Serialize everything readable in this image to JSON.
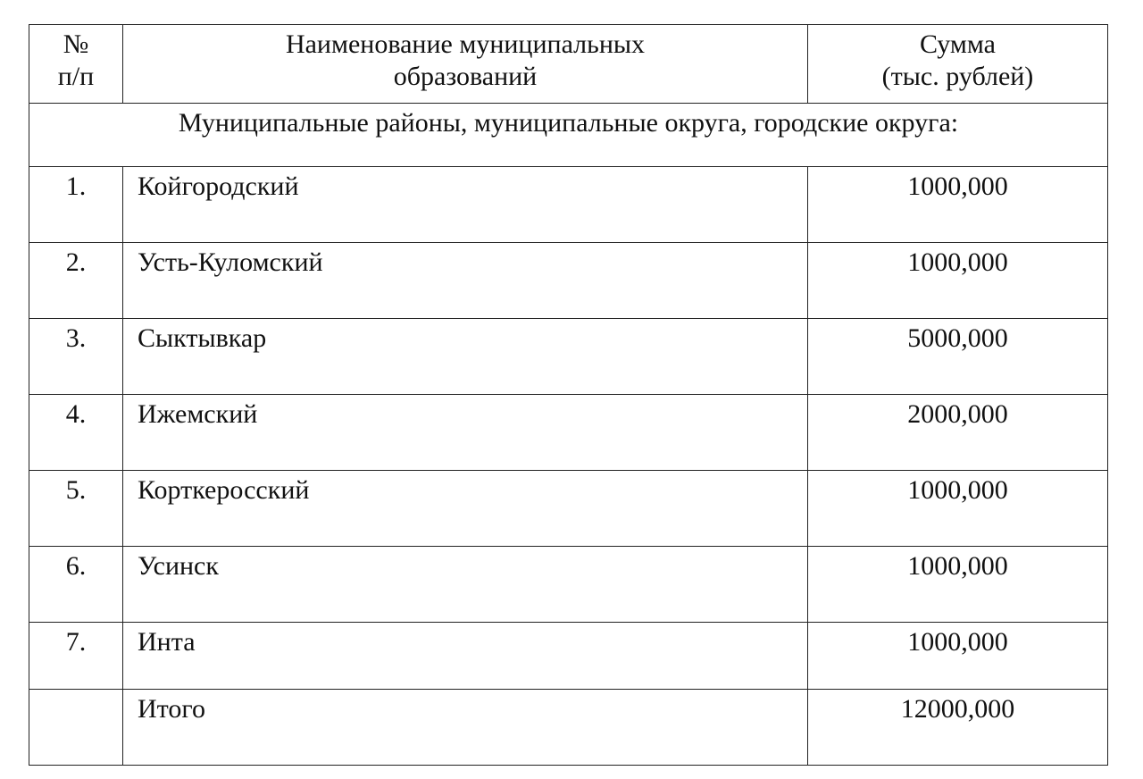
{
  "table": {
    "headers": {
      "num": [
        "№",
        "п/п"
      ],
      "name": [
        "Наименование муниципальных",
        "образований"
      ],
      "sum": [
        "Сумма",
        "(тыс. рублей)"
      ]
    },
    "section_title": "Муниципальные районы, муниципальные округа, городские округа:",
    "rows": [
      {
        "num": "1.",
        "name": "Койгородский",
        "sum": "1000,000"
      },
      {
        "num": "2.",
        "name": "Усть-Куломский",
        "sum": "1000,000"
      },
      {
        "num": "3.",
        "name": "Сыктывкар",
        "sum": "5000,000"
      },
      {
        "num": "4.",
        "name": "Ижемский",
        "sum": "2000,000"
      },
      {
        "num": "5.",
        "name": "Корткеросский",
        "sum": "1000,000"
      },
      {
        "num": "6.",
        "name": "Усинск",
        "sum": "1000,000"
      },
      {
        "num": "7.",
        "name": "Инта",
        "sum": "1000,000"
      }
    ],
    "total": {
      "label": "Итого",
      "sum": "12000,000"
    }
  }
}
